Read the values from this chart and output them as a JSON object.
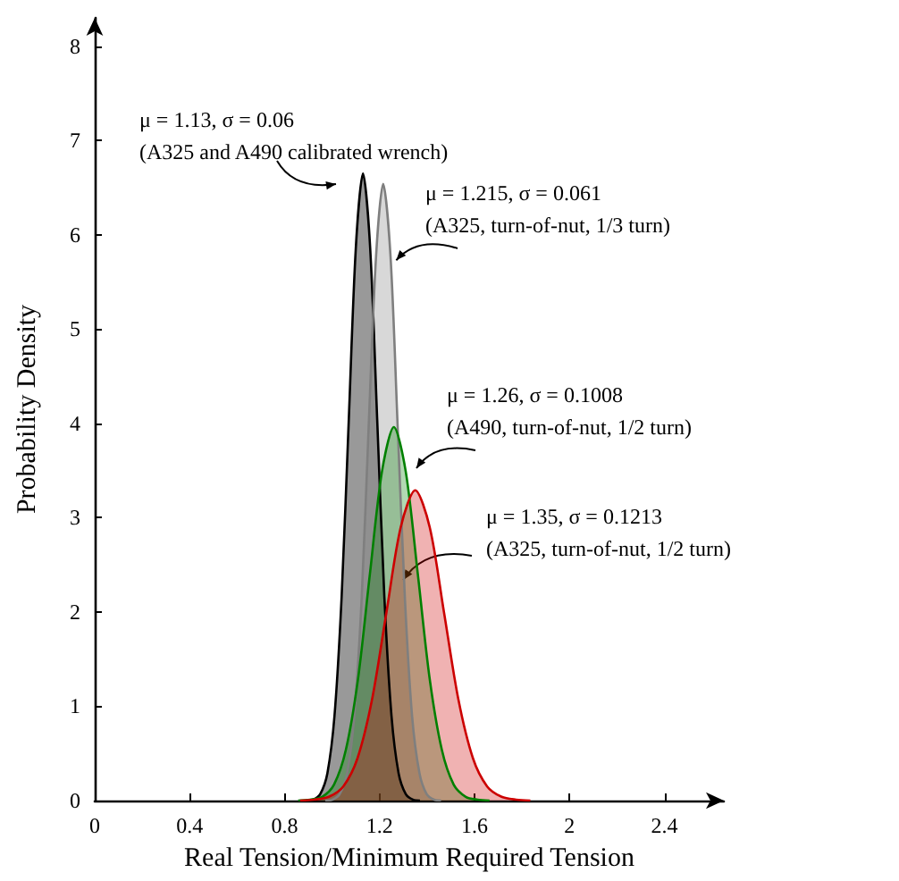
{
  "chart_data": {
    "type": "area",
    "xlabel": "Real Tension/Minimum Required Tension",
    "ylabel": "Probability Density",
    "xlim": [
      0,
      2.65
    ],
    "ylim": [
      0,
      8.3
    ],
    "xticks": [
      0,
      0.4,
      0.8,
      1.2,
      1.6,
      2.0,
      2.4
    ],
    "yticks": [
      0,
      1,
      2,
      3,
      4,
      5,
      6,
      7,
      8
    ],
    "grid": false,
    "marker": "none",
    "line_style": "solid",
    "series": [
      {
        "color": "#000000",
        "x": [
          0.89,
          0.92,
          0.95,
          0.98,
          1.01,
          1.04,
          1.07,
          1.1,
          1.13,
          1.16,
          1.19,
          1.22,
          1.25,
          1.28,
          1.31,
          1.34,
          1.37
        ],
        "values": [
          0,
          0.01,
          0.07,
          0.29,
          0.9,
          2.16,
          4.03,
          5.87,
          6.65,
          5.87,
          4.03,
          2.16,
          0.9,
          0.29,
          0.07,
          0.01,
          0
        ]
      },
      {
        "color": "#7f7f7f",
        "x": [
          0.971,
          1.002,
          1.032,
          1.063,
          1.093,
          1.124,
          1.154,
          1.185,
          1.215,
          1.246,
          1.276,
          1.307,
          1.337,
          1.368,
          1.398,
          1.429,
          1.459
        ],
        "values": [
          0,
          0.01,
          0.07,
          0.29,
          0.89,
          2.12,
          3.97,
          5.77,
          6.54,
          5.77,
          3.97,
          2.12,
          0.89,
          0.29,
          0.07,
          0.01,
          0
        ]
      },
      {
        "color": "#008000",
        "x": [
          0.857,
          0.907,
          0.958,
          1.008,
          1.058,
          1.109,
          1.159,
          1.21,
          1.26,
          1.31,
          1.361,
          1.411,
          1.462,
          1.512,
          1.563,
          1.613,
          1.663
        ],
        "values": [
          0,
          0.01,
          0.04,
          0.17,
          0.54,
          1.29,
          2.4,
          3.49,
          3.96,
          3.49,
          2.4,
          1.29,
          0.54,
          0.17,
          0.04,
          0.01,
          0
        ]
      },
      {
        "color": "#cc0000",
        "x": [
          0.865,
          0.925,
          0.986,
          1.047,
          1.107,
          1.168,
          1.229,
          1.289,
          1.35,
          1.411,
          1.471,
          1.532,
          1.593,
          1.653,
          1.714,
          1.775,
          1.835
        ],
        "values": [
          0,
          0.01,
          0.04,
          0.15,
          0.45,
          1.07,
          2.0,
          2.9,
          3.29,
          2.9,
          2.0,
          1.07,
          0.45,
          0.15,
          0.04,
          0.01,
          0
        ]
      }
    ],
    "annotations": [
      "μ = 1.13, σ = 0.06\n(A325 and A490 calibrated wrench)",
      {
        "text": "μ = 1.215, σ = 0.061\n(A325, turn-of-nut, 1/3 turn)",
        "x": 1.27,
        "y": 5.73
      },
      "μ = 1.26, σ = 0.1008\n(A490, turn-of-nut, 1/2 turn)",
      {
        "text": "μ = 1.35, σ = 0.1213\n(A325, turn-of-nut, 1/2 turn)",
        "x": 1.3,
        "y": 2.34
      }
    ]
  }
}
